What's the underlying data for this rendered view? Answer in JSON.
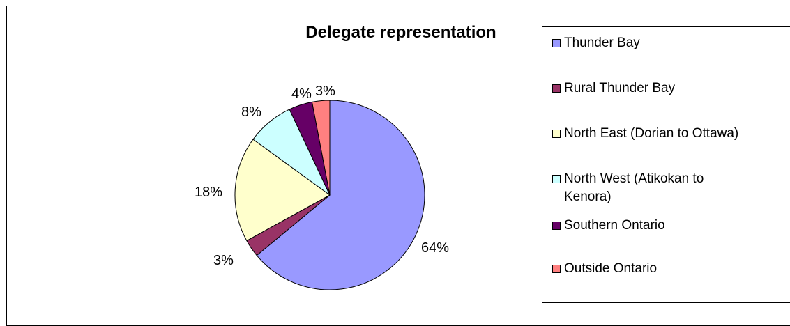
{
  "chart_data": {
    "type": "pie",
    "title": "Delegate representation",
    "categories": [
      "Thunder Bay",
      "Rural Thunder Bay",
      "North East (Dorian to Ottawa)",
      "North West (Atikokan to Kenora)",
      "Southern Ontario",
      "Outside Ontario"
    ],
    "values": [
      64,
      3,
      18,
      8,
      4,
      3
    ],
    "data_labels": [
      "64%",
      "3%",
      "18%",
      "8%",
      "4%",
      "3%"
    ],
    "colors": [
      "#9999FF",
      "#993366",
      "#FFFFCC",
      "#CCFFFF",
      "#660066",
      "#FF8080"
    ],
    "legend_position": "right"
  }
}
